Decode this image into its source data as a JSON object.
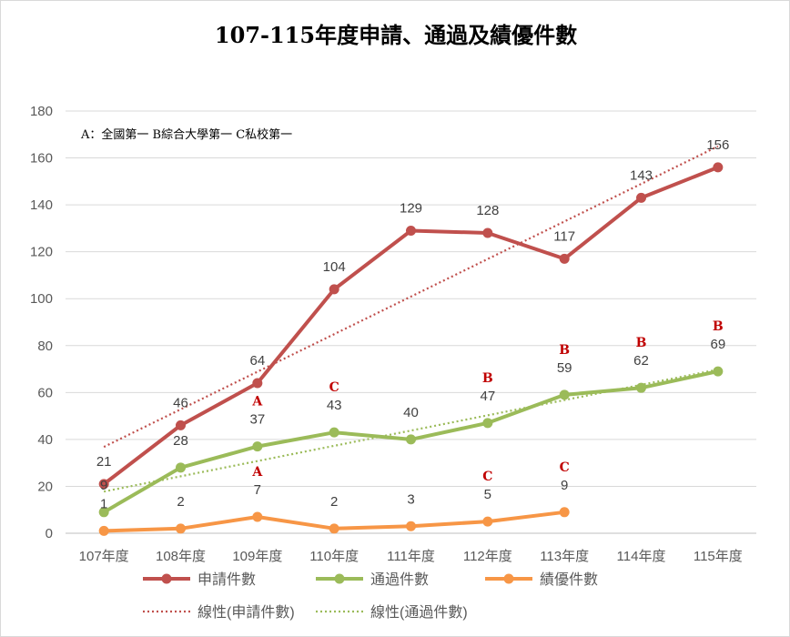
{
  "chart_data": {
    "type": "line",
    "title": "107-115年度申請、通過及績優件數",
    "note": "A：全國第一  B綜合大學第一  C私校第一",
    "categories": [
      "107年度",
      "108年度",
      "109年度",
      "110年度",
      "111年度",
      "112年度",
      "113年度",
      "114年度",
      "115年度"
    ],
    "ylim": [
      0,
      180
    ],
    "yticks": [
      0,
      20,
      40,
      60,
      80,
      100,
      120,
      140,
      160,
      180
    ],
    "grid": true,
    "legend_position": "bottom",
    "series": [
      {
        "name": "申請件數",
        "color": "#c0504d",
        "values": [
          21,
          46,
          64,
          104,
          129,
          128,
          117,
          143,
          156
        ]
      },
      {
        "name": "通過件數",
        "color": "#9bbb59",
        "values": [
          9,
          28,
          37,
          43,
          40,
          47,
          59,
          62,
          69
        ]
      },
      {
        "name": "績優件數",
        "color": "#f79646",
        "values": [
          1,
          2,
          7,
          2,
          3,
          5,
          9,
          null,
          null
        ]
      }
    ],
    "trendlines": [
      {
        "name": "線性(申請件數)",
        "color": "#c0504d",
        "of": "申請件數"
      },
      {
        "name": "線性(通過件數)",
        "color": "#9bbb59",
        "of": "通過件數"
      }
    ],
    "rank_markers": {
      "通過件數": [
        null,
        null,
        "A",
        "C",
        null,
        "B",
        "B",
        "B",
        "B"
      ],
      "績優件數": [
        null,
        null,
        "A",
        null,
        null,
        "C",
        "C",
        null,
        null
      ]
    }
  }
}
